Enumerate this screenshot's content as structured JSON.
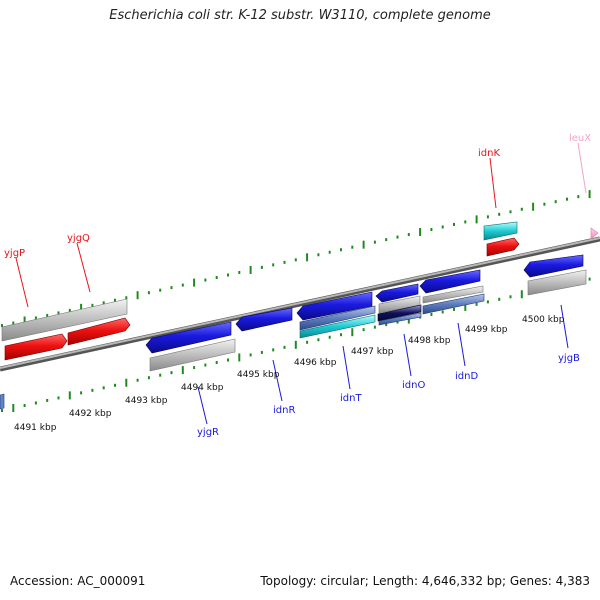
{
  "title": "Escherichia coli str. K-12 substr. W3110, complete genome",
  "footer": {
    "accession": "Accession: AC_000091",
    "topology": "Topology: circular; Length: 4,646,332 bp; Genes: 4,383"
  },
  "colors": {
    "forward_gene": "#e8141c",
    "reverse_gene": "#1a1ae0",
    "rna_gene": "#1ecbd2",
    "pseudo_gene": "#bdbdbd",
    "trna_gene": "#f4a3c8",
    "backbone": "#8c8c8c",
    "dotted_ring": "#1f8a1f"
  },
  "ticks": [
    "4491 kbp",
    "4492 kbp",
    "4493 kbp",
    "4494 kbp",
    "4495 kbp",
    "4496 kbp",
    "4497 kbp",
    "4498 kbp",
    "4499 kbp",
    "4500 kbp"
  ],
  "gene_labels": [
    {
      "name": "yjgP",
      "color": "#e8141c"
    },
    {
      "name": "yjgQ",
      "color": "#e8141c"
    },
    {
      "name": "idnK",
      "color": "#e8141c"
    },
    {
      "name": "leuX",
      "color": "#f4a3c8"
    },
    {
      "name": "yjgR",
      "color": "#1a1ae0"
    },
    {
      "name": "idnR",
      "color": "#1a1ae0"
    },
    {
      "name": "idnT",
      "color": "#1a1ae0"
    },
    {
      "name": "idnO",
      "color": "#1a1ae0"
    },
    {
      "name": "idnD",
      "color": "#1a1ae0"
    },
    {
      "name": "yjgB",
      "color": "#1a1ae0"
    }
  ]
}
